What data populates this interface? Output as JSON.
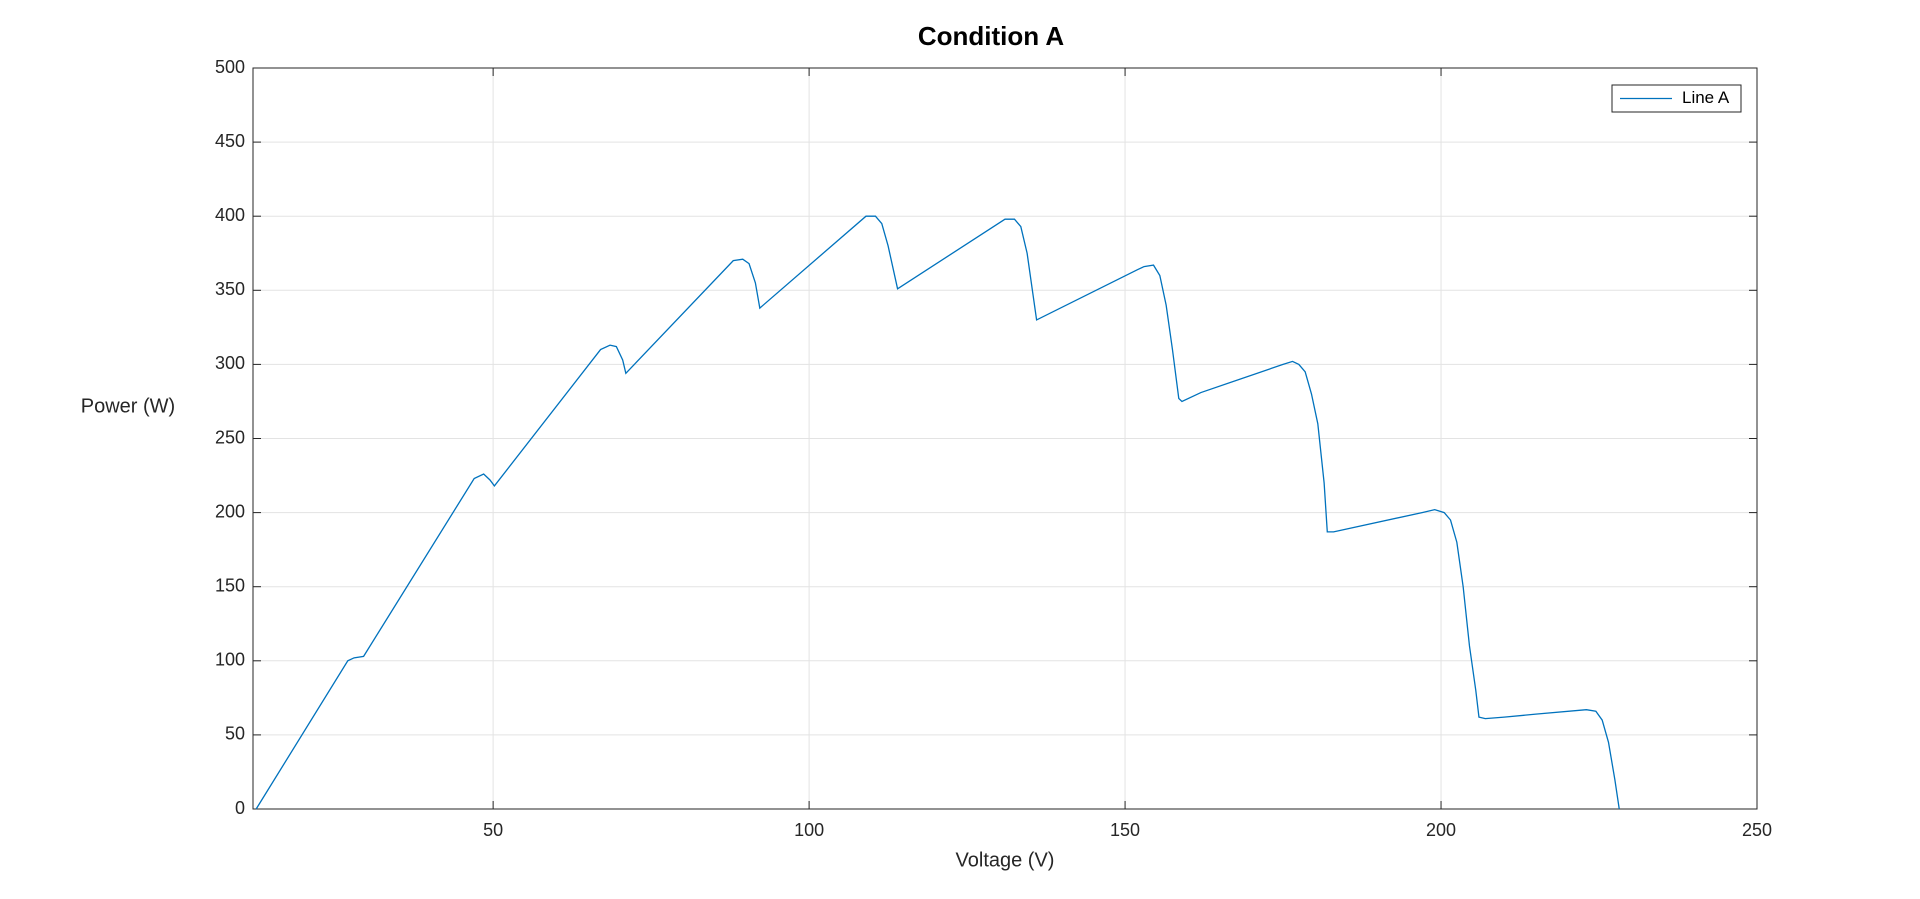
{
  "chart_data": {
    "type": "line",
    "title": "Condition A",
    "x_label": "Voltage (V)",
    "y_label": "Power (W)",
    "x": [
      12.5,
      27,
      28,
      29.5,
      47,
      48.5,
      49.5,
      50.2,
      67,
      68.5,
      69.5,
      70.5,
      71,
      88,
      89.5,
      90.5,
      91.5,
      92.2,
      109,
      110.5,
      111.5,
      112.5,
      114,
      131,
      132.5,
      133.5,
      134.5,
      136,
      152,
      153,
      154.5,
      155.5,
      156.5,
      157.5,
      158.5,
      159,
      162,
      175,
      176.5,
      177.5,
      178.5,
      179.5,
      180.5,
      181.5,
      182,
      183,
      197,
      199,
      200.5,
      201.5,
      202.5,
      203.5,
      204.5,
      205.5,
      206,
      207,
      210,
      215,
      223,
      224.5,
      225.5,
      226.5,
      227.5,
      228.2
    ],
    "series": [
      {
        "name": "Line A",
        "color": "#0072bd",
        "values": [
          0,
          100,
          102,
          103,
          223,
          226,
          222,
          218,
          310,
          313,
          312,
          303,
          294,
          370,
          371,
          368,
          355,
          338,
          400,
          400,
          395,
          380,
          351,
          398,
          398,
          393,
          375,
          330,
          364,
          366,
          367,
          360,
          340,
          310,
          277,
          275,
          281,
          300,
          302,
          300,
          295,
          280,
          260,
          220,
          187,
          187,
          200,
          202,
          200,
          195,
          180,
          150,
          110,
          80,
          62,
          61,
          62,
          64,
          67,
          66,
          60,
          45,
          20,
          0
        ]
      }
    ],
    "xlim": [
      12,
      250
    ],
    "xticks": [
      50,
      100,
      150,
      200,
      250
    ],
    "ylim": [
      0,
      500
    ],
    "yticks": [
      0,
      50,
      100,
      150,
      200,
      250,
      300,
      350,
      400,
      450,
      500
    ],
    "grid": true,
    "legend": "upper right"
  }
}
